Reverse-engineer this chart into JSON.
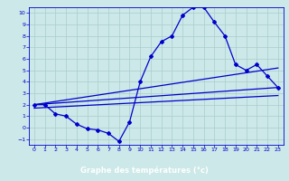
{
  "title": "Graphe des températures (°c)",
  "bg_color": "#cce8e8",
  "plot_bg_color": "#cce8e8",
  "xlabel_bg": "#2222aa",
  "xlabel_fg": "#ffffff",
  "grid_color": "#aacccc",
  "line_color": "#0000cc",
  "xlim": [
    -0.5,
    23.5
  ],
  "ylim": [
    -1.5,
    10.5
  ],
  "xticks": [
    0,
    1,
    2,
    3,
    4,
    5,
    6,
    7,
    8,
    9,
    10,
    11,
    12,
    13,
    14,
    15,
    16,
    17,
    18,
    19,
    20,
    21,
    22,
    23
  ],
  "yticks": [
    -1,
    0,
    1,
    2,
    3,
    4,
    5,
    6,
    7,
    8,
    9,
    10
  ],
  "main_x": [
    0,
    1,
    2,
    3,
    4,
    5,
    6,
    7,
    8,
    9,
    10,
    11,
    12,
    13,
    14,
    15,
    16,
    17,
    18,
    19,
    20,
    21,
    22,
    23
  ],
  "main_y": [
    2.0,
    2.0,
    1.2,
    1.0,
    0.3,
    -0.1,
    -0.2,
    -0.5,
    -1.2,
    0.5,
    4.0,
    6.2,
    7.5,
    8.0,
    9.8,
    10.5,
    10.5,
    9.2,
    8.0,
    5.5,
    5.0,
    5.5,
    4.5,
    3.5
  ],
  "line2_x": [
    0,
    23
  ],
  "line2_y": [
    2.0,
    5.2
  ],
  "line3_x": [
    0,
    23
  ],
  "line3_y": [
    2.0,
    3.5
  ],
  "line4_x": [
    0,
    23
  ],
  "line4_y": [
    1.7,
    2.8
  ]
}
